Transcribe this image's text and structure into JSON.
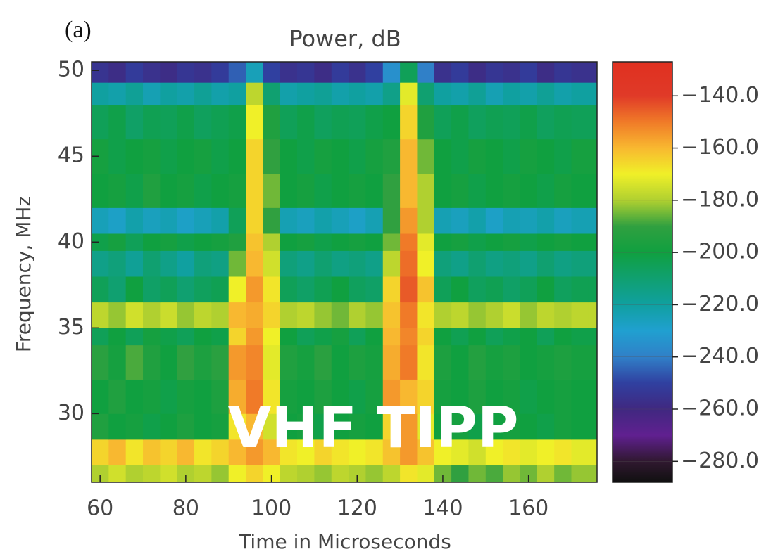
{
  "chart_data": {
    "type": "heatmap",
    "panel_label": "(a)",
    "title": "Power, dB",
    "xlabel": "Time in Microseconds",
    "ylabel": "Frequency, MHz",
    "annotation": "VHF TIPP",
    "xlim": [
      58,
      176
    ],
    "ylim": [
      26,
      50.5
    ],
    "xticks": [
      60,
      80,
      100,
      120,
      140,
      160
    ],
    "yticks": [
      30,
      35,
      40,
      45,
      50
    ],
    "x_bins": [
      58,
      62,
      66,
      70,
      74,
      78,
      82,
      86,
      90,
      94,
      98,
      102,
      106,
      110,
      114,
      118,
      122,
      126,
      130,
      134,
      138,
      142,
      146,
      150,
      154,
      158,
      162,
      166,
      170,
      174,
      176
    ],
    "y_bins": [
      26,
      27,
      28.5,
      30,
      32,
      34,
      35,
      36.5,
      38,
      39.5,
      40.5,
      42,
      44,
      46,
      48,
      49.3,
      50.5
    ],
    "z": [
      [
        -180,
        -175,
        -180,
        -178,
        -175,
        -180,
        -178,
        -182,
        -170,
        -165,
        -170,
        -178,
        -180,
        -182,
        -178,
        -180,
        -182,
        -178,
        -168,
        -172,
        -185,
        -190,
        -185,
        -188,
        -182,
        -185,
        -180,
        -185,
        -182,
        -182
      ],
      [
        -165,
        -160,
        -168,
        -162,
        -165,
        -160,
        -168,
        -165,
        -160,
        -155,
        -160,
        -168,
        -170,
        -165,
        -168,
        -170,
        -168,
        -162,
        -155,
        -162,
        -170,
        -172,
        -175,
        -170,
        -168,
        -172,
        -170,
        -168,
        -172,
        -172
      ],
      [
        -195,
        -200,
        -198,
        -202,
        -200,
        -196,
        -200,
        -198,
        -168,
        -160,
        -175,
        -200,
        -198,
        -202,
        -200,
        -198,
        -200,
        -165,
        -155,
        -172,
        -200,
        -198,
        -202,
        -200,
        -198,
        -200,
        -202,
        -198,
        -200,
        -200
      ],
      [
        -200,
        -195,
        -200,
        -198,
        -202,
        -198,
        -200,
        -196,
        -158,
        -150,
        -168,
        -198,
        -200,
        -196,
        -200,
        -202,
        -198,
        -155,
        -160,
        -165,
        -198,
        -200,
        -196,
        -200,
        -198,
        -202,
        -200,
        -198,
        -200,
        -200
      ],
      [
        -192,
        -198,
        -188,
        -195,
        -200,
        -190,
        -196,
        -192,
        -155,
        -152,
        -172,
        -195,
        -198,
        -192,
        -200,
        -196,
        -198,
        -158,
        -150,
        -168,
        -196,
        -200,
        -194,
        -198,
        -196,
        -200,
        -198,
        -196,
        -198,
        -198
      ],
      [
        -205,
        -200,
        -205,
        -198,
        -202,
        -205,
        -200,
        -202,
        -165,
        -155,
        -170,
        -200,
        -205,
        -202,
        -198,
        -205,
        -200,
        -160,
        -152,
        -165,
        -200,
        -204,
        -200,
        -205,
        -202,
        -200,
        -205,
        -200,
        -202,
        -202
      ],
      [
        -178,
        -182,
        -175,
        -180,
        -176,
        -182,
        -178,
        -180,
        -160,
        -158,
        -165,
        -180,
        -178,
        -182,
        -185,
        -180,
        -182,
        -162,
        -150,
        -168,
        -180,
        -178,
        -182,
        -180,
        -176,
        -182,
        -178,
        -180,
        -178,
        -178
      ],
      [
        -205,
        -210,
        -200,
        -208,
        -205,
        -210,
        -206,
        -204,
        -170,
        -155,
        -168,
        -205,
        -208,
        -204,
        -200,
        -206,
        -208,
        -165,
        -145,
        -162,
        -205,
        -200,
        -206,
        -204,
        -208,
        -205,
        -200,
        -206,
        -204,
        -204
      ],
      [
        -215,
        -212,
        -218,
        -210,
        -215,
        -220,
        -212,
        -214,
        -185,
        -160,
        -175,
        -212,
        -215,
        -210,
        -214,
        -212,
        -215,
        -178,
        -148,
        -170,
        -212,
        -215,
        -210,
        -214,
        -212,
        -215,
        -210,
        -214,
        -212,
        -212
      ],
      [
        -202,
        -198,
        -205,
        -200,
        -198,
        -202,
        -200,
        -198,
        -195,
        -162,
        -180,
        -200,
        -198,
        -202,
        -200,
        -198,
        -200,
        -185,
        -150,
        -172,
        -200,
        -198,
        -202,
        -200,
        -198,
        -202,
        -200,
        -198,
        -200,
        -200
      ],
      [
        -225,
        -228,
        -222,
        -226,
        -224,
        -228,
        -225,
        -222,
        -205,
        -165,
        -190,
        -224,
        -226,
        -222,
        -225,
        -228,
        -224,
        -190,
        -155,
        -180,
        -224,
        -226,
        -222,
        -228,
        -224,
        -225,
        -222,
        -226,
        -224,
        -224
      ],
      [
        -200,
        -198,
        -202,
        -195,
        -200,
        -198,
        -202,
        -200,
        -198,
        -165,
        -185,
        -200,
        -198,
        -202,
        -200,
        -198,
        -200,
        -190,
        -160,
        -180,
        -200,
        -198,
        -202,
        -200,
        -198,
        -200,
        -202,
        -198,
        -200,
        -200
      ],
      [
        -198,
        -202,
        -200,
        -198,
        -202,
        -200,
        -198,
        -202,
        -200,
        -165,
        -190,
        -200,
        -202,
        -198,
        -200,
        -202,
        -198,
        -195,
        -160,
        -185,
        -200,
        -202,
        -198,
        -200,
        -202,
        -198,
        -200,
        -202,
        -198,
        -198
      ],
      [
        -205,
        -202,
        -208,
        -204,
        -205,
        -202,
        -206,
        -204,
        -202,
        -170,
        -195,
        -205,
        -202,
        -206,
        -204,
        -205,
        -202,
        -200,
        -165,
        -195,
        -205,
        -202,
        -206,
        -204,
        -205,
        -202,
        -206,
        -204,
        -205,
        -205
      ],
      [
        -220,
        -222,
        -218,
        -224,
        -220,
        -222,
        -218,
        -222,
        -220,
        -178,
        -210,
        -222,
        -220,
        -218,
        -222,
        -220,
        -222,
        -215,
        -172,
        -210,
        -220,
        -222,
        -218,
        -224,
        -220,
        -222,
        -218,
        -222,
        -220,
        -220
      ],
      [
        -255,
        -258,
        -252,
        -256,
        -258,
        -254,
        -256,
        -252,
        -245,
        -225,
        -250,
        -256,
        -254,
        -258,
        -252,
        -256,
        -250,
        -235,
        -205,
        -240,
        -256,
        -252,
        -258,
        -254,
        -256,
        -252,
        -258,
        -254,
        -256,
        -256
      ]
    ],
    "zlim": [
      -288,
      -127
    ],
    "zticks": [
      {
        "value": -140,
        "label": "−140.0"
      },
      {
        "value": -160,
        "label": "−160.0"
      },
      {
        "value": -180,
        "label": "−180.0"
      },
      {
        "value": -200,
        "label": "−200.0"
      },
      {
        "value": -220,
        "label": "−220.0"
      },
      {
        "value": -240,
        "label": "−240.0"
      },
      {
        "value": -260,
        "label": "−260.0"
      },
      {
        "value": -280,
        "label": "−280.0"
      }
    ],
    "colorscale": [
      {
        "value": -288,
        "color": "#101010"
      },
      {
        "value": -280,
        "color": "#301830"
      },
      {
        "value": -270,
        "color": "#602090"
      },
      {
        "value": -260,
        "color": "#402880"
      },
      {
        "value": -250,
        "color": "#3040a0"
      },
      {
        "value": -240,
        "color": "#3080c8"
      },
      {
        "value": -230,
        "color": "#20a0d0"
      },
      {
        "value": -220,
        "color": "#10a0a0"
      },
      {
        "value": -210,
        "color": "#10a070"
      },
      {
        "value": -200,
        "color": "#10a040"
      },
      {
        "value": -190,
        "color": "#30a040"
      },
      {
        "value": -180,
        "color": "#b0d030"
      },
      {
        "value": -170,
        "color": "#f0f028"
      },
      {
        "value": -160,
        "color": "#f8b830"
      },
      {
        "value": -150,
        "color": "#f07a28"
      },
      {
        "value": -140,
        "color": "#e03a28"
      },
      {
        "value": -127,
        "color": "#e03020"
      }
    ]
  }
}
